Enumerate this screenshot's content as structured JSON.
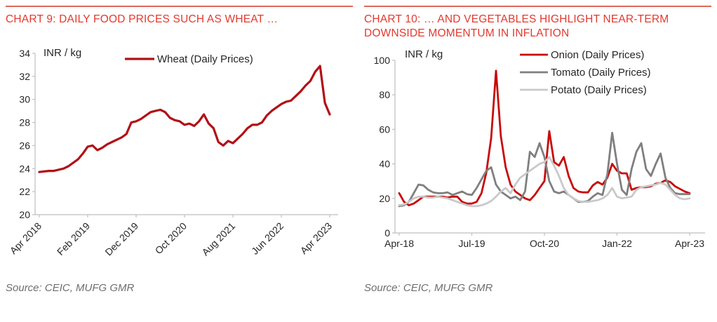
{
  "colors": {
    "title_red": "#E5382C",
    "rule_red": "#E0685C",
    "axis_gray": "#BFBFBF",
    "text_dark": "#262626",
    "source_gray": "#6E6E6E",
    "wheat_red": "#B11116",
    "onion_red": "#C80A0A",
    "tomato_gray": "#7F7F7F",
    "potato_gray": "#C9C9C9"
  },
  "panels": [
    {
      "title": "CHART 9: DAILY FOOD PRICES SUCH AS WHEAT …",
      "source": "Source: CEIC, MUFG GMR"
    },
    {
      "title": "CHART 10: … AND VEGETABLES HIGHLIGHT NEAR-TERM DOWNSIDE MOMENTUM IN INFLATION",
      "source": "Source: CEIC, MUFG GMR"
    }
  ],
  "chart_data": [
    {
      "type": "line",
      "unit_label": "INR / kg",
      "x_frequency": "monthly",
      "x_range": [
        "Apr 2018",
        "Apr 2023"
      ],
      "x_tick_labels": [
        "Apr 2018",
        "Feb 2019",
        "Dec 2019",
        "Oct 2020",
        "Aug 2021",
        "Jun 2022",
        "Apr 2023"
      ],
      "x_tick_positions": [
        0,
        10,
        20,
        30,
        40,
        50,
        60
      ],
      "x_label_rotation": -45,
      "ylim": [
        20,
        34
      ],
      "y_step": 2,
      "grid": false,
      "legend_position": "top-right",
      "series": [
        {
          "name": "Wheat (Daily Prices)",
          "color": "#B11116",
          "values": [
            23.7,
            23.75,
            23.8,
            23.8,
            23.9,
            24.0,
            24.2,
            24.5,
            24.8,
            25.3,
            25.9,
            26.0,
            25.6,
            25.8,
            26.1,
            26.3,
            26.5,
            26.7,
            27.0,
            28.0,
            28.1,
            28.3,
            28.6,
            28.9,
            29.0,
            29.1,
            28.9,
            28.4,
            28.2,
            28.1,
            27.8,
            27.9,
            27.7,
            28.1,
            28.7,
            27.9,
            27.5,
            26.3,
            26.0,
            26.4,
            26.2,
            26.6,
            27.0,
            27.5,
            27.8,
            27.8,
            28.0,
            28.6,
            29.0,
            29.3,
            29.6,
            29.8,
            29.9,
            30.3,
            30.7,
            31.2,
            31.6,
            32.4,
            32.9,
            29.7,
            28.7
          ]
        }
      ]
    },
    {
      "type": "line",
      "unit_label": "INR / kg",
      "x_frequency": "monthly",
      "x_range": [
        "Apr-18",
        "Apr-23"
      ],
      "x_tick_labels": [
        "Apr-18",
        "Jul-19",
        "Oct-20",
        "Jan-22",
        "Apr-23"
      ],
      "x_tick_positions": [
        0,
        15,
        30,
        45,
        60
      ],
      "x_label_rotation": 0,
      "ylim": [
        0,
        100
      ],
      "y_step": 20,
      "grid": false,
      "legend_position": "top-right",
      "series": [
        {
          "name": "Onion (Daily Prices)",
          "color": "#C80A0A",
          "values": [
            23,
            18,
            16,
            17,
            19,
            21,
            21,
            21,
            21,
            21,
            20.5,
            21,
            21,
            18,
            17,
            17,
            18,
            23,
            35,
            55,
            94,
            56,
            38,
            28,
            24,
            22,
            20,
            19,
            22,
            26,
            30,
            59,
            41,
            39,
            44,
            33,
            26,
            24,
            23.5,
            23.5,
            27.5,
            29.5,
            28,
            32,
            40,
            36,
            34.5,
            34.5,
            25,
            26,
            26.5,
            26.5,
            27,
            28.5,
            29,
            30.5,
            29.5,
            27,
            25.5,
            24,
            23
          ]
        },
        {
          "name": "Tomato (Daily Prices)",
          "color": "#7F7F7F",
          "values": [
            15.5,
            16,
            18,
            23,
            28,
            27.5,
            25,
            23.5,
            23,
            23,
            23.5,
            22,
            23,
            24,
            22.5,
            22,
            26,
            31,
            36,
            38,
            28,
            24,
            22,
            20,
            21,
            19,
            24,
            47,
            44,
            52,
            44,
            30,
            24,
            23,
            24,
            22,
            20,
            18,
            18,
            18.5,
            21,
            23,
            22,
            34,
            58,
            40,
            25,
            22,
            37,
            47,
            52,
            37,
            33,
            40,
            46,
            32,
            26,
            23,
            22.5,
            22.5,
            22.5
          ]
        },
        {
          "name": "Potato (Daily Prices)",
          "color": "#C9C9C9",
          "values": [
            16,
            16.5,
            18,
            20,
            21,
            21,
            20.5,
            20.5,
            21,
            20.5,
            20,
            19,
            18,
            17,
            16,
            15.5,
            15.5,
            16,
            17,
            18.5,
            21,
            24,
            26,
            23,
            28,
            32,
            34,
            36,
            38,
            40,
            41,
            44,
            39,
            33,
            26,
            22,
            20,
            18.5,
            18,
            18,
            18.5,
            19,
            20,
            22,
            26,
            21,
            20,
            20.5,
            21,
            25,
            26.5,
            27,
            27.5,
            28,
            29,
            28,
            25,
            22,
            20,
            19.5,
            20
          ]
        }
      ]
    }
  ]
}
